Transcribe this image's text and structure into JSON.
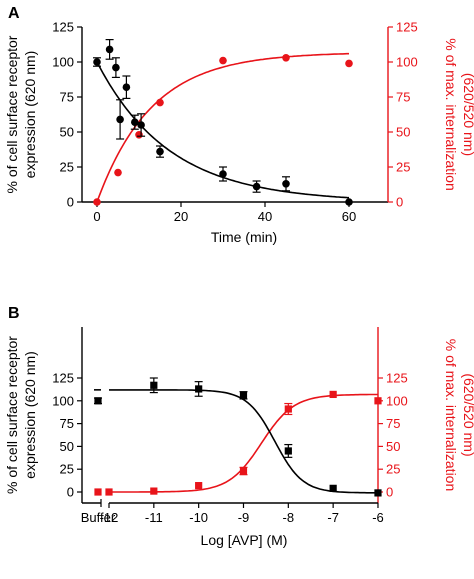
{
  "chart_data": [
    {
      "panel": "A",
      "type": "scatter",
      "xlabel": "Time (min)",
      "ylabel": "% of cell surface receptor\nexpression (620 nm)",
      "y2label": "% of max. internalization\n(620/520 nm)",
      "xlim": [
        -2,
        62
      ],
      "ylim": [
        0,
        125
      ],
      "y2lim": [
        0,
        125
      ],
      "x_ticks": [
        0,
        20,
        40,
        60
      ],
      "y_ticks": [
        0,
        25,
        50,
        75,
        100,
        125
      ],
      "y2_ticks": [
        0,
        25,
        50,
        75,
        100,
        125
      ],
      "series": [
        {
          "axis": "left",
          "color": "#000000",
          "marker": "circle",
          "points": [
            {
              "x": 0,
              "y": 100,
              "err": 3
            },
            {
              "x": 3,
              "y": 109,
              "err": 7
            },
            {
              "x": 4.5,
              "y": 96,
              "err": 7
            },
            {
              "x": 5.5,
              "y": 59,
              "err": 14
            },
            {
              "x": 7,
              "y": 82,
              "err": 8
            },
            {
              "x": 9,
              "y": 57,
              "err": 5
            },
            {
              "x": 10.5,
              "y": 55,
              "err": 8
            },
            {
              "x": 15,
              "y": 36,
              "err": 4
            },
            {
              "x": 30,
              "y": 20,
              "err": 5
            },
            {
              "x": 38,
              "y": 11,
              "err": 4
            },
            {
              "x": 45,
              "y": 13,
              "err": 5
            },
            {
              "x": 60,
              "y": 0,
              "err": 0
            }
          ],
          "fit": {
            "kind": "exp_decay",
            "A": 100,
            "k": 0.058
          }
        },
        {
          "axis": "right",
          "color": "#e8141a",
          "marker": "circle",
          "points": [
            {
              "x": 0,
              "y": 0
            },
            {
              "x": 5,
              "y": 21
            },
            {
              "x": 10,
              "y": 48
            },
            {
              "x": 15,
              "y": 71
            },
            {
              "x": 30,
              "y": 101
            },
            {
              "x": 45,
              "y": 103
            },
            {
              "x": 60,
              "y": 99
            }
          ],
          "fit": {
            "kind": "exp_rise",
            "Ymax": 107,
            "k": 0.077
          }
        }
      ]
    },
    {
      "panel": "B",
      "type": "scatter",
      "xlabel": "Log [AVP] (M)",
      "ylabel": "% of cell surface receptor\nexpression (620 nm)",
      "y2label": "% of max. internalization\n(620/520 nm)",
      "xlim": [
        -12,
        -6
      ],
      "ylim": [
        0,
        125
      ],
      "y2lim": [
        0,
        125
      ],
      "x_ticks": [
        -12,
        -11,
        -10,
        -9,
        -8,
        -7,
        -6
      ],
      "x_extra_label": "Buffer",
      "y_ticks": [
        0,
        25,
        50,
        75,
        100,
        125
      ],
      "y2_ticks": [
        0,
        25,
        50,
        75,
        100,
        125
      ],
      "series": [
        {
          "axis": "left",
          "color": "#000000",
          "marker": "square",
          "buffer_point": {
            "y": 100,
            "err": 3
          },
          "points": [
            {
              "x": -11,
              "y": 117,
              "err": 8
            },
            {
              "x": -10,
              "y": 113,
              "err": 8
            },
            {
              "x": -9,
              "y": 106,
              "err": 4
            },
            {
              "x": -8,
              "y": 45,
              "err": 7
            },
            {
              "x": -7,
              "y": 4,
              "err": 0
            },
            {
              "x": -6,
              "y": -1,
              "err": 0
            }
          ],
          "fit": {
            "kind": "sigmoid_down",
            "top": 112,
            "bottom": -1,
            "logEC50": -8.3,
            "hill": 1.4
          }
        },
        {
          "axis": "right",
          "color": "#e8141a",
          "marker": "square",
          "buffer_point": {
            "y": 0,
            "err": 0
          },
          "points": [
            {
              "x": -12,
              "y": 0,
              "err": 0
            },
            {
              "x": -11,
              "y": 1,
              "err": 0
            },
            {
              "x": -10,
              "y": 7,
              "err": 0
            },
            {
              "x": -9,
              "y": 23,
              "err": 4
            },
            {
              "x": -8,
              "y": 91,
              "err": 6
            },
            {
              "x": -7,
              "y": 107,
              "err": 0
            },
            {
              "x": -6,
              "y": 100,
              "err": 0
            }
          ],
          "fit": {
            "kind": "sigmoid_up",
            "bottom": 0,
            "top": 107,
            "logEC50": -8.6,
            "hill": 1.2
          }
        }
      ]
    }
  ]
}
